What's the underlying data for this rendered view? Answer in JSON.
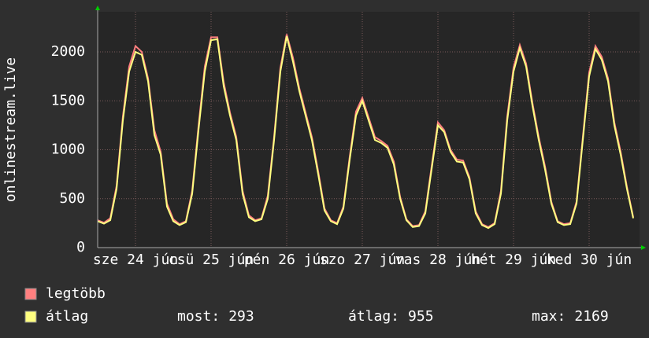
{
  "chart_data": {
    "type": "line",
    "y_label": "onlinestream.live",
    "xlim": [
      0,
      86
    ],
    "xticks": [
      {
        "value": 6,
        "label": "sze 24 jún"
      },
      {
        "value": 18,
        "label": "csü 25 jún"
      },
      {
        "value": 30,
        "label": "pén 26 jún"
      },
      {
        "value": 42,
        "label": "szo 27 jún"
      },
      {
        "value": 54,
        "label": "vas 28 jún"
      },
      {
        "value": 66,
        "label": "hét 29 jún"
      },
      {
        "value": 78,
        "label": "ked 30 jún"
      }
    ],
    "ylim": [
      0,
      2410
    ],
    "yticks": [
      0,
      500,
      1000,
      1500,
      2000
    ],
    "grid": true,
    "series": [
      {
        "name": "legtöbb",
        "color": "#ff7f7f",
        "values": [
          280,
          255,
          300,
          630,
          1340,
          1850,
          2060,
          2000,
          1730,
          1200,
          980,
          450,
          290,
          240,
          270,
          580,
          1240,
          1850,
          2150,
          2150,
          1690,
          1380,
          1130,
          580,
          330,
          280,
          300,
          530,
          1130,
          1840,
          2180,
          1940,
          1630,
          1380,
          1130,
          780,
          400,
          280,
          250,
          420,
          930,
          1390,
          1530,
          1330,
          1130,
          1090,
          1040,
          880,
          520,
          290,
          220,
          230,
          370,
          830,
          1280,
          1200,
          1000,
          900,
          890,
          720,
          370,
          240,
          210,
          250,
          580,
          1340,
          1840,
          2070,
          1880,
          1480,
          1130,
          830,
          470,
          270,
          240,
          250,
          470,
          1130,
          1790,
          2060,
          1950,
          1730,
          1280,
          980,
          620,
          310
        ]
      },
      {
        "name": "átlag",
        "color": "#ffff80",
        "values": [
          270,
          245,
          280,
          600,
          1300,
          1800,
          2000,
          1970,
          1700,
          1150,
          950,
          420,
          270,
          230,
          260,
          550,
          1200,
          1800,
          2120,
          2130,
          1650,
          1350,
          1100,
          550,
          310,
          270,
          290,
          500,
          1100,
          1800,
          2160,
          1900,
          1600,
          1350,
          1100,
          750,
          380,
          270,
          240,
          400,
          900,
          1350,
          1500,
          1300,
          1100,
          1070,
          1020,
          850,
          500,
          280,
          210,
          220,
          350,
          800,
          1250,
          1180,
          980,
          880,
          870,
          700,
          350,
          230,
          200,
          240,
          550,
          1300,
          1800,
          2040,
          1850,
          1450,
          1100,
          800,
          450,
          260,
          230,
          240,
          450,
          1100,
          1750,
          2030,
          1920,
          1700,
          1250,
          950,
          600,
          300
        ]
      }
    ],
    "stats": [
      {
        "label": "most:",
        "value": 293
      },
      {
        "label": "átlag:",
        "value": 955
      },
      {
        "label": "max:",
        "value": 2169
      }
    ]
  }
}
